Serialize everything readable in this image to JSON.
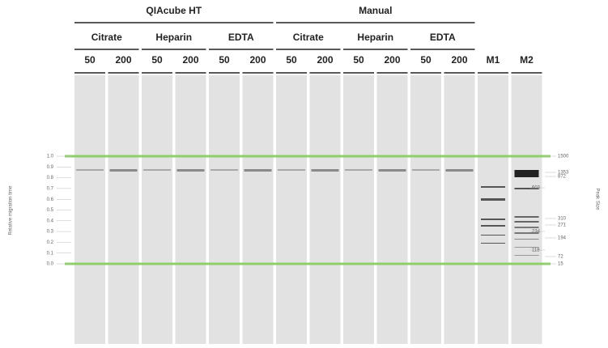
{
  "header": {
    "groups": [
      "QIAcube HT",
      "Manual"
    ],
    "anticoagulants": [
      "Citrate",
      "Heparin",
      "EDTA",
      "Citrate",
      "Heparin",
      "EDTA"
    ],
    "volumes": [
      "50",
      "200",
      "50",
      "200",
      "50",
      "200",
      "50",
      "200",
      "50",
      "200",
      "50",
      "200"
    ],
    "markers": [
      "M1",
      "M2"
    ]
  },
  "migration_axis": {
    "title": "Relative migration time",
    "ticks": [
      "1.0",
      "0.9",
      "0.8",
      "0.7",
      "0.6",
      "0.5",
      "0.4",
      "0.3",
      "0.2",
      "0.1",
      "0.0"
    ]
  },
  "size_axis": {
    "title": "Peak Size",
    "labels": [
      "1500",
      "1353",
      "872",
      "603",
      "310",
      "271",
      "234",
      "194",
      "118",
      "72",
      "15"
    ]
  }
}
